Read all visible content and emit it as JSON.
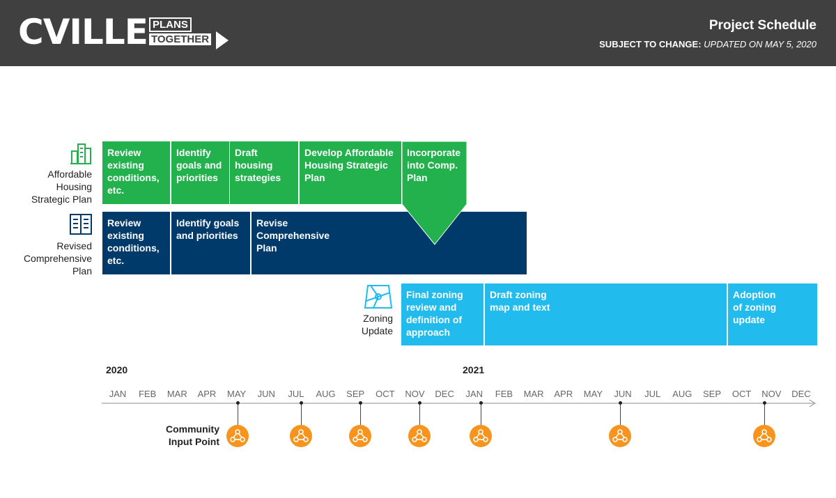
{
  "header": {
    "logo_main": "CVILLE",
    "logo_plans": "PLANS",
    "logo_together": "TOGETHER",
    "title": "Project Schedule",
    "subtitle_bold": "SUBJECT TO CHANGE:",
    "subtitle_italic": "UPDATED ON MAY 5, 2020"
  },
  "rows": {
    "housing": {
      "label": [
        "Affordable",
        "Housing",
        "Strategic Plan"
      ],
      "icon": "buildings-icon",
      "segments": [
        "Review existing conditions, etc.",
        "Identify goals and priorities",
        "Draft housing strategies",
        "Develop Affordable Housing Strategic Plan",
        "Incorporate into Comp. Plan"
      ]
    },
    "comprehensive": {
      "label": [
        "Revised",
        "Comprehensive",
        "Plan"
      ],
      "icon": "book-icon",
      "segments": [
        "Review existing conditions, etc.",
        "Identify goals and priorities",
        "Revise Comprehensive Plan"
      ]
    },
    "zoning": {
      "label": [
        "Zoning",
        "Update"
      ],
      "icon": "map-icon",
      "segments": [
        "Final zoning review and definition of approach",
        "Draft zoning map and text",
        "Adoption of zoning update"
      ]
    }
  },
  "timeline": {
    "years": [
      "2020",
      "2021"
    ],
    "months": [
      "JAN",
      "FEB",
      "MAR",
      "APR",
      "MAY",
      "JUN",
      "JUL",
      "AUG",
      "SEP",
      "OCT",
      "NOV",
      "DEC",
      "JAN",
      "FEB",
      "MAR",
      "APR",
      "MAY",
      "JUN",
      "JUL",
      "AUG",
      "SEP",
      "OCT",
      "NOV",
      "DEC"
    ],
    "community_input_label": [
      "Community",
      "Input Point"
    ],
    "community_input_icon": "community-people-icon"
  },
  "colors": {
    "header_bg": "#404040",
    "housing": "#22b14c",
    "comprehensive": "#003a6b",
    "zoning": "#22bbee",
    "community_input": "#f7941d"
  }
}
